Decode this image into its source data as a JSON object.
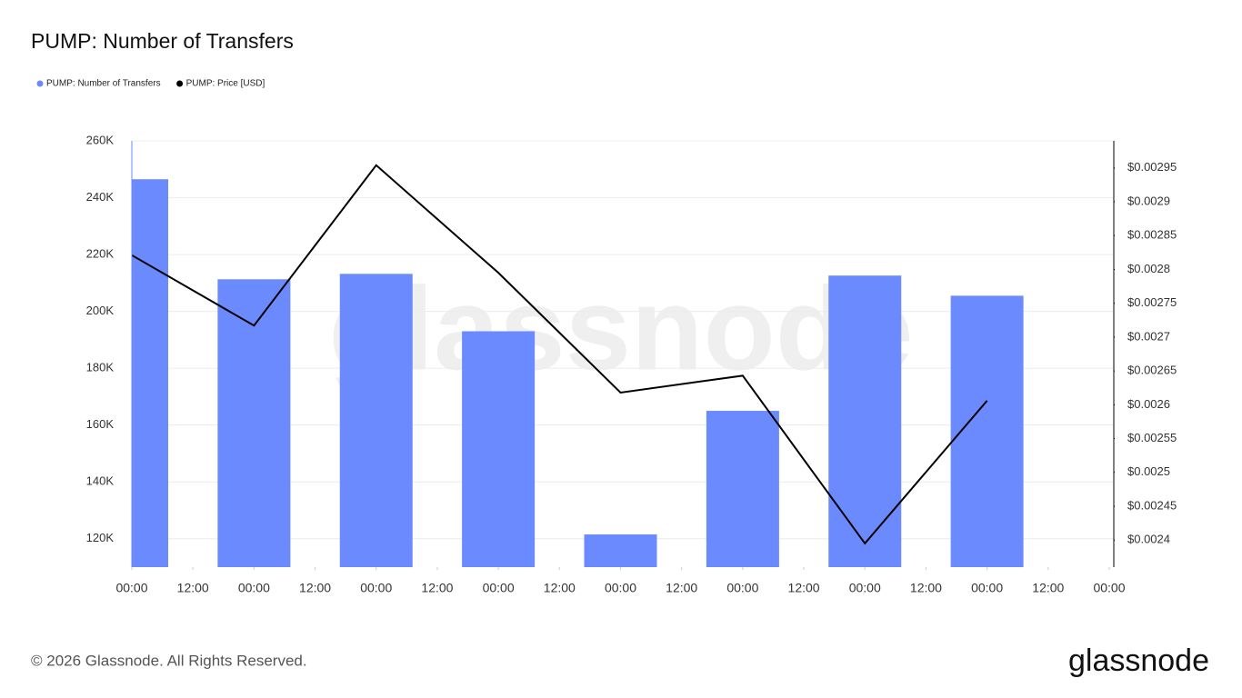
{
  "chart_data": {
    "type": "bar-line",
    "title": "PUMP: Number of Transfers",
    "watermark": "glassnode",
    "footer": "© 2026 Glassnode. All Rights Reserved.",
    "logo": "glassnode",
    "x": [
      0,
      24,
      48,
      72,
      96,
      120,
      144,
      168
    ],
    "xlim": [
      0,
      192
    ],
    "xticks": [
      {
        "value": 0,
        "label": "00:00"
      },
      {
        "value": 12,
        "label": "12:00"
      },
      {
        "value": 24,
        "label": "00:00"
      },
      {
        "value": 36,
        "label": "12:00"
      },
      {
        "value": 48,
        "label": "00:00"
      },
      {
        "value": 60,
        "label": "12:00"
      },
      {
        "value": 72,
        "label": "00:00"
      },
      {
        "value": 84,
        "label": "12:00"
      },
      {
        "value": 96,
        "label": "00:00"
      },
      {
        "value": 108,
        "label": "12:00"
      },
      {
        "value": 120,
        "label": "00:00"
      },
      {
        "value": 132,
        "label": "12:00"
      },
      {
        "value": 144,
        "label": "00:00"
      },
      {
        "value": 156,
        "label": "12:00"
      },
      {
        "value": 168,
        "label": "00:00"
      },
      {
        "value": 180,
        "label": "12:00"
      },
      {
        "value": 192,
        "label": "00:00"
      }
    ],
    "ylim": [
      110000,
      260000
    ],
    "yticks": [
      {
        "value": 120000,
        "label": "120K"
      },
      {
        "value": 140000,
        "label": "140K"
      },
      {
        "value": 160000,
        "label": "160K"
      },
      {
        "value": 180000,
        "label": "180K"
      },
      {
        "value": 200000,
        "label": "200K"
      },
      {
        "value": 220000,
        "label": "220K"
      },
      {
        "value": 240000,
        "label": "240K"
      },
      {
        "value": 260000,
        "label": "260K"
      }
    ],
    "y2lim": [
      0.00236,
      0.00299
    ],
    "y2ticks": [
      {
        "value": 0.0024,
        "label": "$0.0024"
      },
      {
        "value": 0.00245,
        "label": "$0.00245"
      },
      {
        "value": 0.0025,
        "label": "$0.0025"
      },
      {
        "value": 0.00255,
        "label": "$0.00255"
      },
      {
        "value": 0.0026,
        "label": "$0.0026"
      },
      {
        "value": 0.00265,
        "label": "$0.00265"
      },
      {
        "value": 0.0027,
        "label": "$0.0027"
      },
      {
        "value": 0.00275,
        "label": "$0.00275"
      },
      {
        "value": 0.0028,
        "label": "$0.0028"
      },
      {
        "value": 0.00285,
        "label": "$0.00285"
      },
      {
        "value": 0.0029,
        "label": "$0.0029"
      },
      {
        "value": 0.00295,
        "label": "$0.00295"
      }
    ],
    "grid": true,
    "series": [
      {
        "name": "PUMP: Number of Transfers",
        "type": "bar",
        "color": "#6b8afd",
        "values": [
          246500,
          211300,
          213200,
          193000,
          121500,
          165000,
          212600,
          205500
        ]
      },
      {
        "name": "PUMP: Price [USD]",
        "type": "line",
        "axis": "y2",
        "color": "#000000",
        "values": [
          0.002821,
          0.002717,
          0.002954,
          0.002795,
          0.002618,
          0.002643,
          0.002395,
          0.002606
        ]
      }
    ]
  }
}
